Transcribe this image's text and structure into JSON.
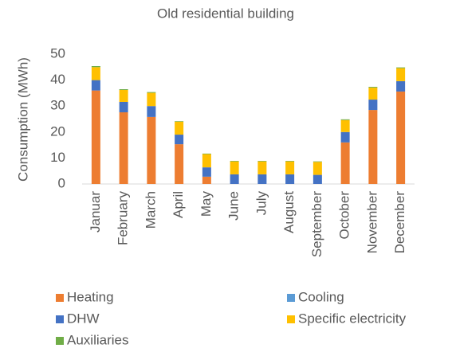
{
  "chart_data": {
    "type": "stacked_bar",
    "title": "Old residential building",
    "y_label": "Consumption (MWh)",
    "categories": [
      "Januar",
      "February",
      "March",
      "April",
      "May",
      "June",
      "July",
      "August",
      "September",
      "October",
      "November",
      "December"
    ],
    "series": [
      {
        "name": "Heating",
        "color": "#ed7d31",
        "values": [
          36,
          27.6,
          25.8,
          15.3,
          2.8,
          0,
          0,
          0,
          0,
          16,
          28.5,
          35.6
        ]
      },
      {
        "name": "Cooling",
        "color": "#5b9bd5",
        "values": [
          0,
          0,
          0,
          0,
          0,
          0,
          0,
          0,
          0,
          0,
          0,
          0
        ]
      },
      {
        "name": "DHW",
        "color": "#4472c4",
        "values": [
          4,
          4,
          4.2,
          3.7,
          3.6,
          3.7,
          3.7,
          3.7,
          3.5,
          4,
          4,
          4
        ]
      },
      {
        "name": "Specific electricity",
        "color": "#ffc000",
        "values": [
          5,
          4.6,
          5.1,
          5,
          5.1,
          5,
          5,
          5,
          5,
          4.6,
          4.6,
          5
        ]
      },
      {
        "name": "Auxiliaries",
        "color": "#70ad47",
        "values": [
          0.4,
          0.3,
          0.3,
          0.2,
          0.2,
          0.2,
          0.2,
          0.2,
          0.2,
          0.3,
          0.3,
          0.3
        ]
      }
    ],
    "ylim": [
      0,
      50
    ],
    "yticks": [
      0,
      10,
      20,
      30,
      40,
      50
    ],
    "grid": false,
    "legend": "bottom"
  }
}
